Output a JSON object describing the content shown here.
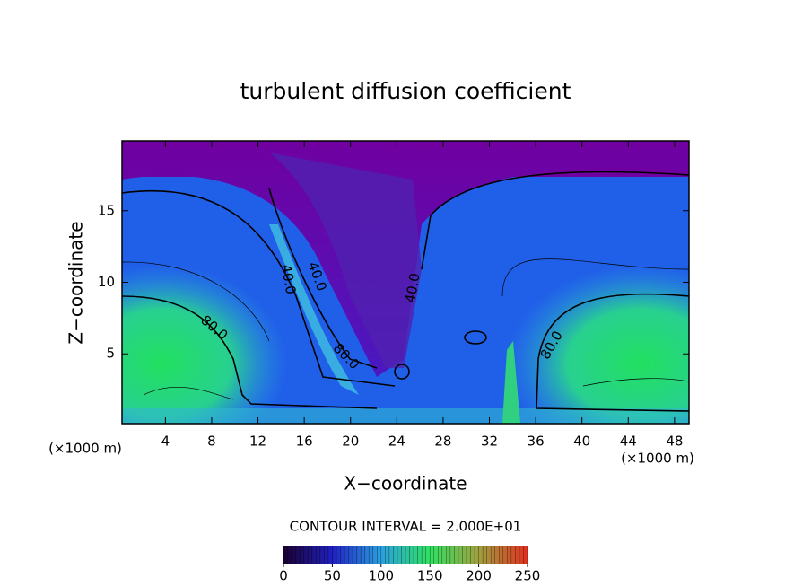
{
  "chart_data": {
    "type": "contour",
    "title": "turbulent diffusion coefficient",
    "x_label": "X−coordinate",
    "y_label": "Z−coordinate",
    "x_unit": "(×1000 m)",
    "x_unit_right": "(×1000 m)",
    "contour_interval": "CONTOUR INTERVAL = 2.000E+01",
    "xlim": [
      0.25,
      49.25
    ],
    "ylim": [
      0.125,
      19.875
    ],
    "xticks": [
      4,
      8,
      12,
      16,
      20,
      24,
      28,
      32,
      36,
      40,
      44,
      48
    ],
    "yticks": [
      5,
      10,
      15
    ],
    "contour_labels": [
      {
        "value": 40,
        "label": "40.0",
        "x": 14.6,
        "y": 10.2
      },
      {
        "value": 40,
        "label": "40.0",
        "x": 17.1,
        "y": 10.4
      },
      {
        "value": 40,
        "label": "40.0",
        "x": 25.4,
        "y": 9.6
      },
      {
        "value": 80,
        "label": "80.0",
        "x": 8.2,
        "y": 6.8
      },
      {
        "value": 80,
        "label": "80.0",
        "x": 19.6,
        "y": 4.8
      },
      {
        "value": 80,
        "label": "80.0",
        "x": 37.4,
        "y": 5.6
      }
    ],
    "colorbar": {
      "lim": [
        0,
        250
      ],
      "ticks": [
        0,
        50,
        100,
        150,
        200,
        250
      ],
      "colors": [
        "#1a0030",
        "#2020c0",
        "#2aa0e0",
        "#30e060",
        "#a0a040",
        "#e03020"
      ]
    }
  }
}
